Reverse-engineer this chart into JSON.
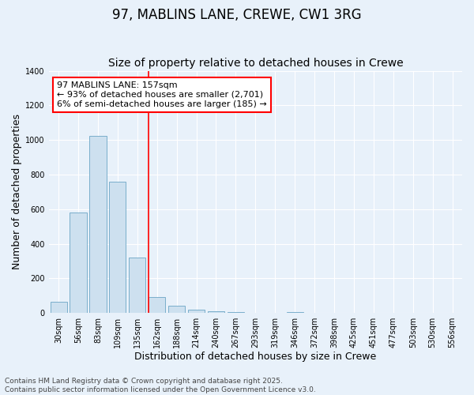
{
  "title": "97, MABLINS LANE, CREWE, CW1 3RG",
  "subtitle": "Size of property relative to detached houses in Crewe",
  "xlabel": "Distribution of detached houses by size in Crewe",
  "ylabel": "Number of detached properties",
  "categories": [
    "30sqm",
    "56sqm",
    "83sqm",
    "109sqm",
    "135sqm",
    "162sqm",
    "188sqm",
    "214sqm",
    "240sqm",
    "267sqm",
    "293sqm",
    "319sqm",
    "346sqm",
    "372sqm",
    "398sqm",
    "425sqm",
    "451sqm",
    "477sqm",
    "503sqm",
    "530sqm",
    "556sqm"
  ],
  "values": [
    65,
    580,
    1025,
    760,
    320,
    90,
    42,
    20,
    8,
    3,
    0,
    0,
    3,
    0,
    0,
    0,
    0,
    0,
    0,
    0,
    0
  ],
  "bar_color": "#cde0ef",
  "bar_edge_color": "#7aaecb",
  "vline_index": 5,
  "vline_color": "red",
  "annotation_text": "97 MABLINS LANE: 157sqm\n← 93% of detached houses are smaller (2,701)\n6% of semi-detached houses are larger (185) →",
  "annotation_box_color": "white",
  "annotation_box_edge_color": "red",
  "ylim": [
    0,
    1400
  ],
  "yticks": [
    0,
    200,
    400,
    600,
    800,
    1000,
    1200,
    1400
  ],
  "background_color": "#e8f1fa",
  "grid_color": "#ffffff",
  "footer_line1": "Contains HM Land Registry data © Crown copyright and database right 2025.",
  "footer_line2": "Contains public sector information licensed under the Open Government Licence v3.0.",
  "title_fontsize": 12,
  "subtitle_fontsize": 10,
  "xlabel_fontsize": 9,
  "ylabel_fontsize": 9,
  "tick_fontsize": 7,
  "annotation_fontsize": 8,
  "footer_fontsize": 6.5
}
